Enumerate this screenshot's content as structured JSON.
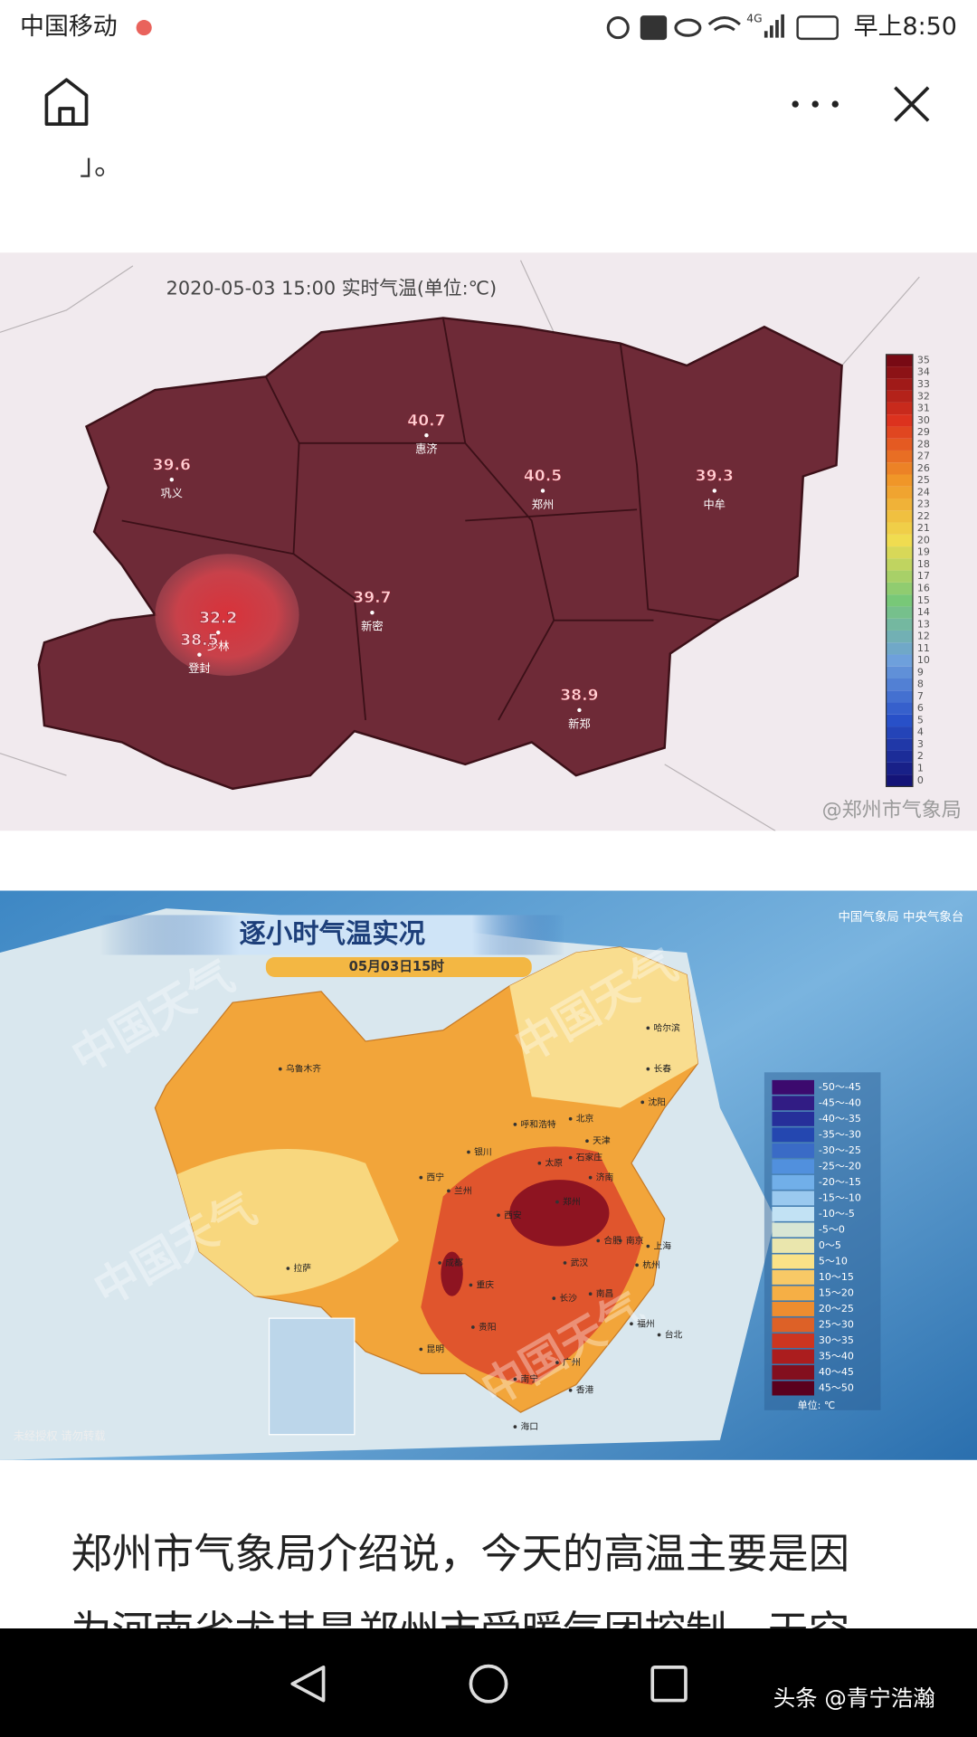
{
  "status_bar": {
    "carrier": "中国移动",
    "network": "4G",
    "time": "早上8:50"
  },
  "article_fragment": "」。",
  "map1": {
    "title": "2020-05-03 15:00 实时气温(单位:℃)",
    "stations": [
      {
        "value": "39.6",
        "name": "巩义"
      },
      {
        "value": "40.7",
        "name": "惠济"
      },
      {
        "value": "40.5",
        "name": "郑州"
      },
      {
        "value": "39.3",
        "name": "中牟"
      },
      {
        "value": "32.2",
        "name": "少林"
      },
      {
        "value": "38.5",
        "name": "登封"
      },
      {
        "value": "39.7",
        "name": "新密"
      },
      {
        "value": "38.9",
        "name": "新郑"
      }
    ],
    "scale": [
      0,
      1,
      2,
      3,
      4,
      5,
      6,
      7,
      8,
      9,
      10,
      11,
      12,
      13,
      14,
      15,
      16,
      17,
      18,
      19,
      20,
      21,
      22,
      23,
      24,
      25,
      26,
      27,
      28,
      29,
      30,
      31,
      32,
      33,
      34,
      35
    ],
    "watermark": "@郑州市气象局"
  },
  "map2": {
    "title": "逐小时气温实况",
    "time": "05月03日15时",
    "agency": "中国气象局 中央气象台",
    "cities": [
      "乌鲁木齐",
      "哈尔滨",
      "长春",
      "沈阳",
      "呼和浩特",
      "北京",
      "天津",
      "银川",
      "太原",
      "石家庄",
      "西宁",
      "兰州",
      "济南",
      "郑州",
      "西安",
      "合肥",
      "南京",
      "上海",
      "武汉",
      "杭州",
      "成都",
      "重庆",
      "拉萨",
      "长沙",
      "南昌",
      "贵阳",
      "福州",
      "台北",
      "昆明",
      "南宁",
      "广州",
      "香港",
      "海口"
    ],
    "legend": [
      "-50～-45",
      "-45～-40",
      "-40～-35",
      "-35～-30",
      "-30～-25",
      "-25～-20",
      "-20～-15",
      "-15～-10",
      "-10～-5",
      "-5～0",
      "0～5",
      "5～10",
      "10～15",
      "15～20",
      "20～25",
      "25～30",
      "30～35",
      "35～40",
      "40～45",
      "45～50"
    ],
    "unit": "单位: ℃",
    "watermark": "中国天气",
    "notice": "未经授权 请勿转载"
  },
  "paragraph": [
    "郑州市气象局介绍说，今天的高温主要是因",
    "为河南省尤其是郑州市受暖气团控制，天空"
  ],
  "nav_bar": {
    "brand": "头条 @青宁浩瀚"
  }
}
